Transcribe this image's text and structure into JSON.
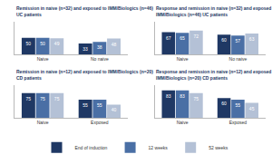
{
  "chart_data": [
    {
      "type": "bar",
      "title": "Remission in naive (n=32) and exposed to IMM/Biologics (n=46) UC patients",
      "categories": [
        "Naive",
        "No naive"
      ],
      "ylim": [
        0,
        100
      ],
      "tick_labels": "x",
      "data_labels": true,
      "legend": "bottom",
      "series": [
        {
          "name": "End of induction",
          "color": "#1f3864",
          "values": [
            50,
            33
          ]
        },
        {
          "name": "12 weeks",
          "color": "#4a6fa5",
          "values": [
            50,
            38
          ]
        },
        {
          "name": "52 weeks",
          "color": "#b4c1d6",
          "values": [
            49,
            48
          ]
        }
      ]
    },
    {
      "type": "bar",
      "title": "Response and remission in naive (n=32) and exposed to IMM/Biologics (n=46) UC patients",
      "categories": [
        "Naive",
        "No naive"
      ],
      "ylim": [
        0,
        100
      ],
      "tick_labels": "x",
      "data_labels": true,
      "series": [
        {
          "name": "End of induction",
          "color": "#1f3864",
          "values": [
            67,
            60
          ]
        },
        {
          "name": "12 weeks",
          "color": "#4a6fa5",
          "values": [
            65,
            57
          ]
        },
        {
          "name": "52 weeks",
          "color": "#b4c1d6",
          "values": [
            72,
            63
          ]
        }
      ]
    },
    {
      "type": "bar",
      "title": "Remission in naive (n=12) and exposed to IMM/Biologics (n=20) CD patients",
      "categories": [
        "Naive",
        "Exposed"
      ],
      "ylim": [
        0,
        100
      ],
      "tick_labels": "x",
      "data_labels": true,
      "series": [
        {
          "name": "End of induction",
          "color": "#1f3864",
          "values": [
            75,
            55
          ]
        },
        {
          "name": "12 weeks",
          "color": "#4a6fa5",
          "values": [
            75,
            55
          ]
        },
        {
          "name": "52 weeks",
          "color": "#b4c1d6",
          "values": [
            75,
            40
          ]
        }
      ]
    },
    {
      "type": "bar",
      "title": "Response and remission in naive (n=12) and exposed to IMM/Biologics (n=20) CD patients",
      "categories": [
        "Naive",
        "Exposed"
      ],
      "ylim": [
        0,
        100
      ],
      "tick_labels": "x",
      "data_labels": true,
      "series": [
        {
          "name": "End of induction",
          "color": "#1f3864",
          "values": [
            83,
            60
          ]
        },
        {
          "name": "12 weeks",
          "color": "#4a6fa5",
          "values": [
            83,
            55
          ]
        },
        {
          "name": "52 weeks",
          "color": "#b4c1d6",
          "values": [
            75,
            45
          ]
        }
      ]
    }
  ]
}
